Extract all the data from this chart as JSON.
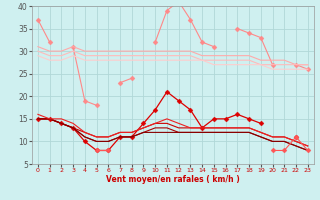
{
  "xlabel": "Vent moyen/en rafales ( km/h )",
  "xlim": [
    -0.5,
    23.5
  ],
  "ylim": [
    5,
    40
  ],
  "yticks": [
    5,
    10,
    15,
    20,
    25,
    30,
    35,
    40
  ],
  "xticks": [
    0,
    1,
    2,
    3,
    4,
    5,
    6,
    7,
    8,
    9,
    10,
    11,
    12,
    13,
    14,
    15,
    16,
    17,
    18,
    19,
    20,
    21,
    22,
    23
  ],
  "background_color": "#cff0f0",
  "grid_color": "#b0d8d8",
  "series": [
    {
      "color": "#ff8888",
      "linewidth": 0.8,
      "marker": "D",
      "markersize": 2.5,
      "data": [
        37,
        32,
        null,
        31,
        19,
        18,
        null,
        23,
        24,
        null,
        32,
        39,
        41,
        37,
        32,
        31,
        null,
        35,
        34,
        33,
        27,
        null,
        27,
        26
      ]
    },
    {
      "color": "#ffaaaa",
      "linewidth": 0.8,
      "marker": null,
      "markersize": 0,
      "data": [
        31,
        30,
        30,
        31,
        30,
        30,
        30,
        30,
        30,
        30,
        30,
        30,
        30,
        30,
        29,
        29,
        29,
        29,
        29,
        28,
        28,
        28,
        27,
        27
      ]
    },
    {
      "color": "#ffbbbb",
      "linewidth": 0.8,
      "marker": null,
      "markersize": 0,
      "data": [
        30,
        29,
        29,
        30,
        29,
        29,
        29,
        29,
        29,
        29,
        29,
        29,
        29,
        29,
        28,
        28,
        28,
        28,
        28,
        27,
        27,
        27,
        27,
        27
      ]
    },
    {
      "color": "#ffcccc",
      "linewidth": 0.8,
      "marker": null,
      "markersize": 0,
      "data": [
        29,
        28,
        28,
        29,
        28,
        28,
        28,
        28,
        28,
        28,
        28,
        28,
        28,
        28,
        28,
        27,
        27,
        27,
        27,
        27,
        26,
        26,
        26,
        26
      ]
    },
    {
      "color": "#dd0000",
      "linewidth": 0.9,
      "marker": "D",
      "markersize": 2.5,
      "data": [
        15,
        15,
        14,
        13,
        10,
        8,
        8,
        11,
        11,
        14,
        17,
        21,
        19,
        17,
        13,
        15,
        15,
        16,
        15,
        14,
        null,
        null,
        11,
        null
      ]
    },
    {
      "color": "#cc0000",
      "linewidth": 0.8,
      "marker": null,
      "markersize": 0,
      "data": [
        15,
        15,
        14,
        13,
        12,
        11,
        11,
        12,
        12,
        13,
        14,
        14,
        13,
        13,
        13,
        13,
        13,
        13,
        13,
        12,
        11,
        11,
        10,
        9
      ]
    },
    {
      "color": "#aa0000",
      "linewidth": 0.8,
      "marker": null,
      "markersize": 0,
      "data": [
        15,
        15,
        14,
        13,
        11,
        10,
        10,
        11,
        11,
        12,
        13,
        13,
        12,
        12,
        12,
        12,
        12,
        12,
        12,
        11,
        10,
        10,
        9,
        8
      ]
    },
    {
      "color": "#880000",
      "linewidth": 0.8,
      "marker": null,
      "markersize": 0,
      "data": [
        15,
        15,
        14,
        13,
        11,
        10,
        10,
        11,
        11,
        12,
        12,
        12,
        12,
        12,
        12,
        12,
        12,
        12,
        12,
        11,
        10,
        10,
        9,
        8
      ]
    },
    {
      "color": "#ee2222",
      "linewidth": 0.8,
      "marker": null,
      "markersize": 0,
      "data": [
        16,
        15,
        15,
        14,
        12,
        11,
        11,
        12,
        12,
        13,
        14,
        15,
        14,
        13,
        13,
        13,
        13,
        13,
        13,
        12,
        11,
        11,
        10,
        9
      ]
    },
    {
      "color": "#ff5555",
      "linewidth": 0.8,
      "marker": "D",
      "markersize": 2.5,
      "data": [
        null,
        null,
        null,
        null,
        null,
        8,
        8,
        null,
        null,
        null,
        null,
        null,
        null,
        null,
        null,
        null,
        null,
        null,
        null,
        null,
        8,
        8,
        11,
        8
      ]
    }
  ]
}
